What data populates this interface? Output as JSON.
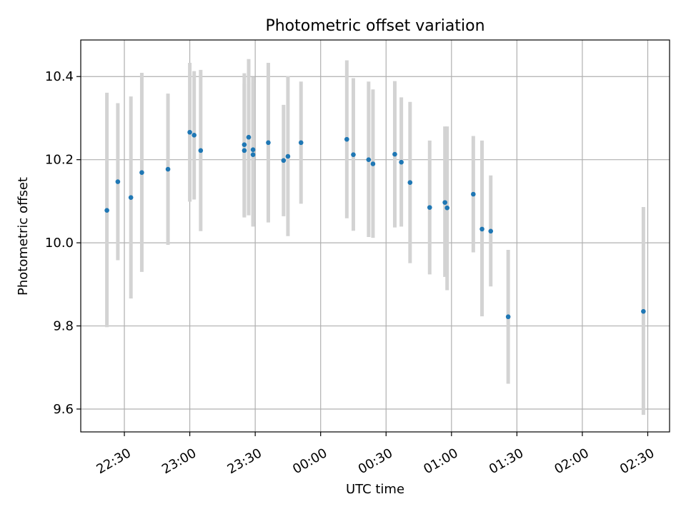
{
  "chart_data": {
    "type": "scatter",
    "title": "Photometric offset variation",
    "xlabel": "UTC time",
    "ylabel": "Photometric offset",
    "xlim": [
      "22:10",
      "02:40"
    ],
    "ylim": [
      9.545,
      10.488
    ],
    "grid": true,
    "x_ticks": [
      "22:30",
      "23:00",
      "23:30",
      "00:00",
      "00:30",
      "01:00",
      "01:30",
      "02:00",
      "02:30"
    ],
    "y_ticks": [
      "9.6",
      "9.8",
      "10.0",
      "10.2",
      "10.4"
    ],
    "series": [
      {
        "marker_color": "#1f77b4",
        "errorbar_color": "#d3d3d3",
        "points": [
          {
            "x": "22:22",
            "y": 10.078,
            "ylow": 9.797,
            "yhigh": 10.361
          },
          {
            "x": "22:27",
            "y": 10.147,
            "ylow": 9.958,
            "yhigh": 10.336
          },
          {
            "x": "22:33",
            "y": 10.109,
            "ylow": 9.866,
            "yhigh": 10.352
          },
          {
            "x": "22:38",
            "y": 10.169,
            "ylow": 9.93,
            "yhigh": 10.409
          },
          {
            "x": "22:50",
            "y": 10.177,
            "ylow": 9.995,
            "yhigh": 10.359
          },
          {
            "x": "23:00",
            "y": 10.266,
            "ylow": 10.099,
            "yhigh": 10.433
          },
          {
            "x": "23:02",
            "y": 10.259,
            "ylow": 10.104,
            "yhigh": 10.413
          },
          {
            "x": "23:05",
            "y": 10.222,
            "ylow": 10.028,
            "yhigh": 10.416
          },
          {
            "x": "23:25",
            "y": 10.222,
            "ylow": 10.061,
            "yhigh": 10.383
          },
          {
            "x": "23:25",
            "y": 10.236,
            "ylow": 10.064,
            "yhigh": 10.408
          },
          {
            "x": "23:27",
            "y": 10.254,
            "ylow": 10.066,
            "yhigh": 10.442
          },
          {
            "x": "23:29",
            "y": 10.212,
            "ylow": 10.039,
            "yhigh": 10.385
          },
          {
            "x": "23:29",
            "y": 10.224,
            "ylow": 10.048,
            "yhigh": 10.399
          },
          {
            "x": "23:36",
            "y": 10.241,
            "ylow": 10.049,
            "yhigh": 10.433
          },
          {
            "x": "23:43",
            "y": 10.198,
            "ylow": 10.064,
            "yhigh": 10.332
          },
          {
            "x": "23:45",
            "y": 10.208,
            "ylow": 10.016,
            "yhigh": 10.401
          },
          {
            "x": "23:51",
            "y": 10.241,
            "ylow": 10.094,
            "yhigh": 10.388
          },
          {
            "x": "00:12",
            "y": 10.249,
            "ylow": 10.059,
            "yhigh": 10.439
          },
          {
            "x": "00:15",
            "y": 10.212,
            "ylow": 10.029,
            "yhigh": 10.396
          },
          {
            "x": "00:22",
            "y": 10.2,
            "ylow": 10.014,
            "yhigh": 10.388
          },
          {
            "x": "00:24",
            "y": 10.19,
            "ylow": 10.012,
            "yhigh": 10.369
          },
          {
            "x": "00:34",
            "y": 10.213,
            "ylow": 10.037,
            "yhigh": 10.389
          },
          {
            "x": "00:37",
            "y": 10.194,
            "ylow": 10.039,
            "yhigh": 10.35
          },
          {
            "x": "00:41",
            "y": 10.145,
            "ylow": 9.951,
            "yhigh": 10.339
          },
          {
            "x": "00:50",
            "y": 10.085,
            "ylow": 9.924,
            "yhigh": 10.246
          },
          {
            "x": "00:57",
            "y": 10.097,
            "ylow": 9.918,
            "yhigh": 10.28
          },
          {
            "x": "00:58",
            "y": 10.084,
            "ylow": 9.886,
            "yhigh": 10.28
          },
          {
            "x": "01:10",
            "y": 10.117,
            "ylow": 9.977,
            "yhigh": 10.257
          },
          {
            "x": "01:14",
            "y": 10.033,
            "ylow": 9.823,
            "yhigh": 10.246
          },
          {
            "x": "01:18",
            "y": 10.028,
            "ylow": 9.895,
            "yhigh": 10.162
          },
          {
            "x": "01:26",
            "y": 9.822,
            "ylow": 9.661,
            "yhigh": 9.983
          },
          {
            "x": "02:28",
            "y": 9.835,
            "ylow": 9.586,
            "yhigh": 10.086
          }
        ]
      }
    ]
  }
}
